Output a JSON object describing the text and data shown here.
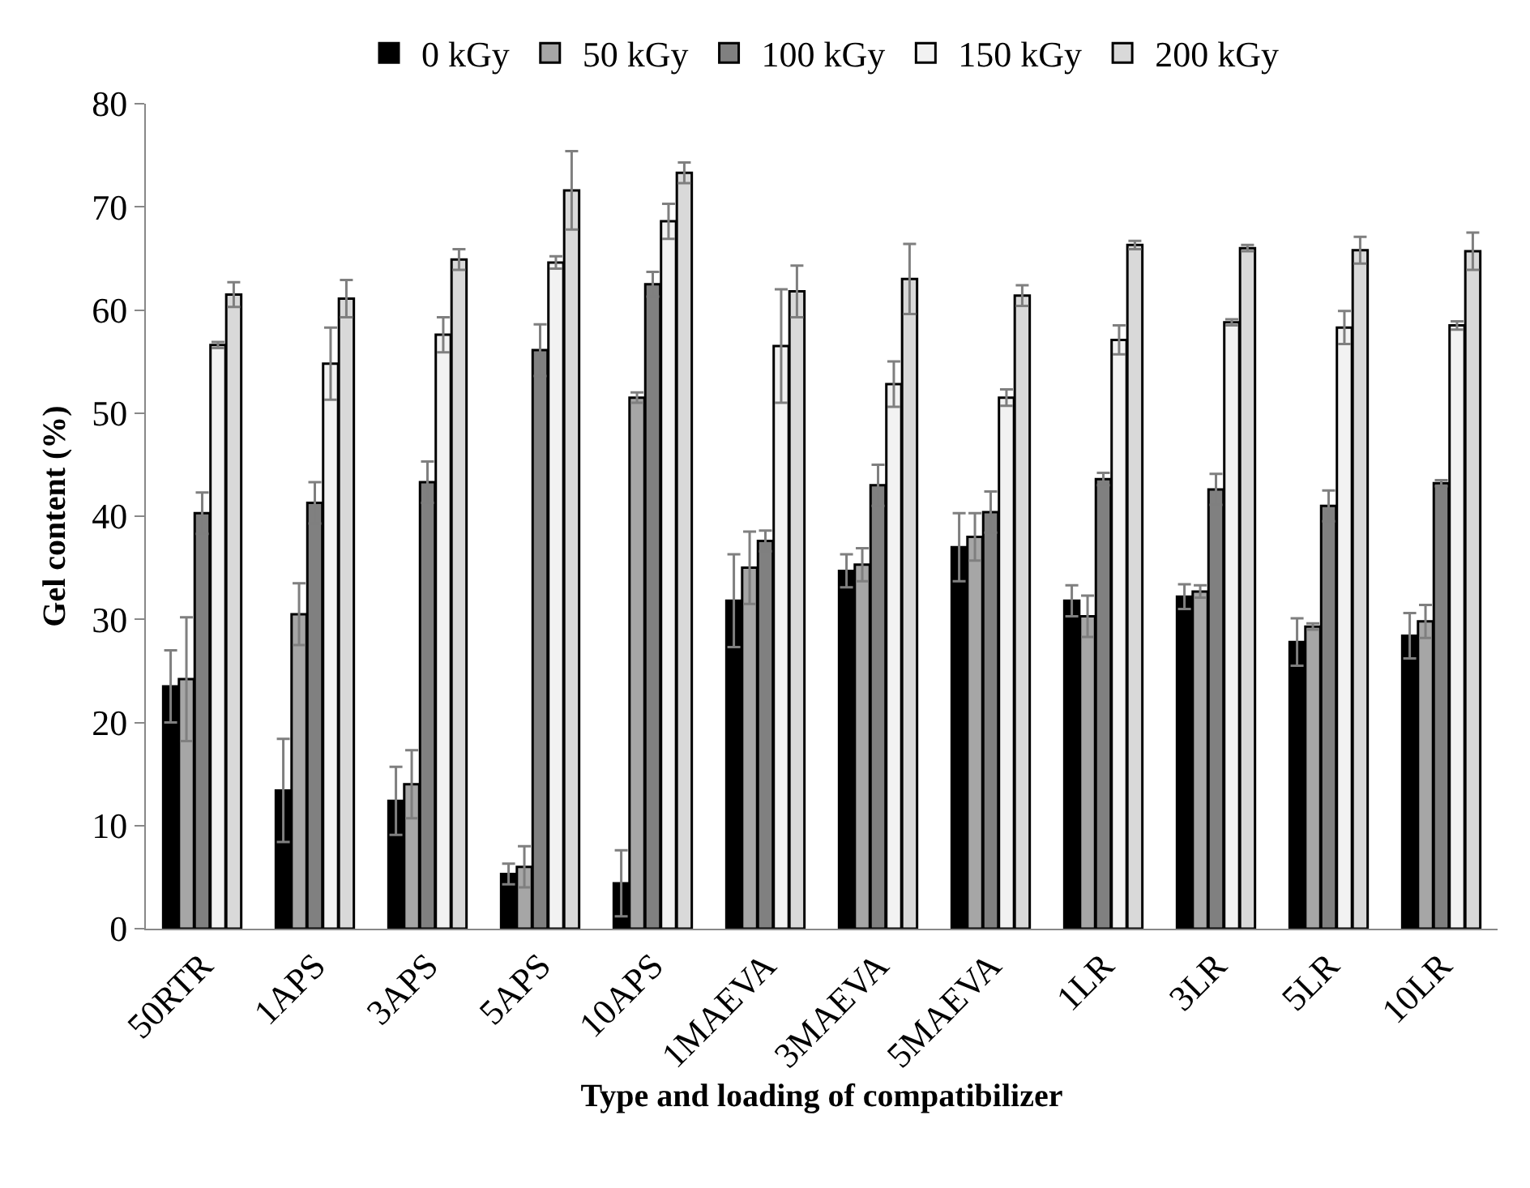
{
  "chart_data": {
    "type": "bar",
    "xlabel": "Type and loading of compatibilizer",
    "ylabel": "Gel content (%)",
    "categories": [
      "50RTR",
      "1APS",
      "3APS",
      "5APS",
      "10APS",
      "1MAEVA",
      "3MAEVA",
      "5MAEVA",
      "1LR",
      "3LR",
      "5LR",
      "10LR"
    ],
    "series": [
      {
        "name": "0 kGy",
        "color": "#000000",
        "values": [
          23.5,
          13.4,
          12.4,
          5.3,
          4.4,
          31.8,
          34.7,
          37,
          31.8,
          32.2,
          27.8,
          28.4
        ],
        "errors": [
          3.5,
          5,
          3.3,
          1,
          3.2,
          4.5,
          1.6,
          3.3,
          1.5,
          1.2,
          2.3,
          2.2
        ]
      },
      {
        "name": "50 kGy",
        "color": "#a6a6a6",
        "values": [
          24.2,
          30.5,
          14,
          6,
          51.5,
          35,
          35.3,
          38,
          30.3,
          32.7,
          29.3,
          29.8
        ],
        "errors": [
          6,
          3,
          3.3,
          2,
          0.5,
          3.5,
          1.6,
          2.3,
          2,
          0.6,
          0.3,
          1.6
        ]
      },
      {
        "name": "100 kGy",
        "color": "#808080",
        "values": [
          40.3,
          41.3,
          43.3,
          56.1,
          62.5,
          37.6,
          43,
          40.4,
          43.6,
          42.6,
          41,
          43.2
        ],
        "errors": [
          2,
          2,
          2,
          2.5,
          1.2,
          1,
          2,
          2,
          0.6,
          1.5,
          1.5,
          0.3
        ]
      },
      {
        "name": "150 kGy",
        "color": "#f2f2f2",
        "values": [
          56.6,
          54.8,
          57.6,
          64.6,
          68.6,
          56.5,
          52.8,
          51.5,
          57.1,
          58.8,
          58.3,
          58.5
        ],
        "errors": [
          0.3,
          3.5,
          1.7,
          0.6,
          1.7,
          5.5,
          2.2,
          0.8,
          1.4,
          0.3,
          1.6,
          0.4
        ]
      },
      {
        "name": "200 kGy",
        "color": "#d9d9d9",
        "values": [
          61.5,
          61.1,
          64.9,
          71.6,
          73.3,
          61.8,
          63,
          61.4,
          66.3,
          66,
          65.8,
          65.7
        ],
        "errors": [
          1.2,
          1.8,
          1,
          3.8,
          1,
          2.5,
          3.4,
          1,
          0.4,
          0.3,
          1.3,
          1.8
        ]
      }
    ],
    "ylim": [
      0,
      80
    ],
    "yticks": [
      0,
      10,
      20,
      30,
      40,
      50,
      60,
      70,
      80
    ],
    "grid": false,
    "legend": "top"
  }
}
